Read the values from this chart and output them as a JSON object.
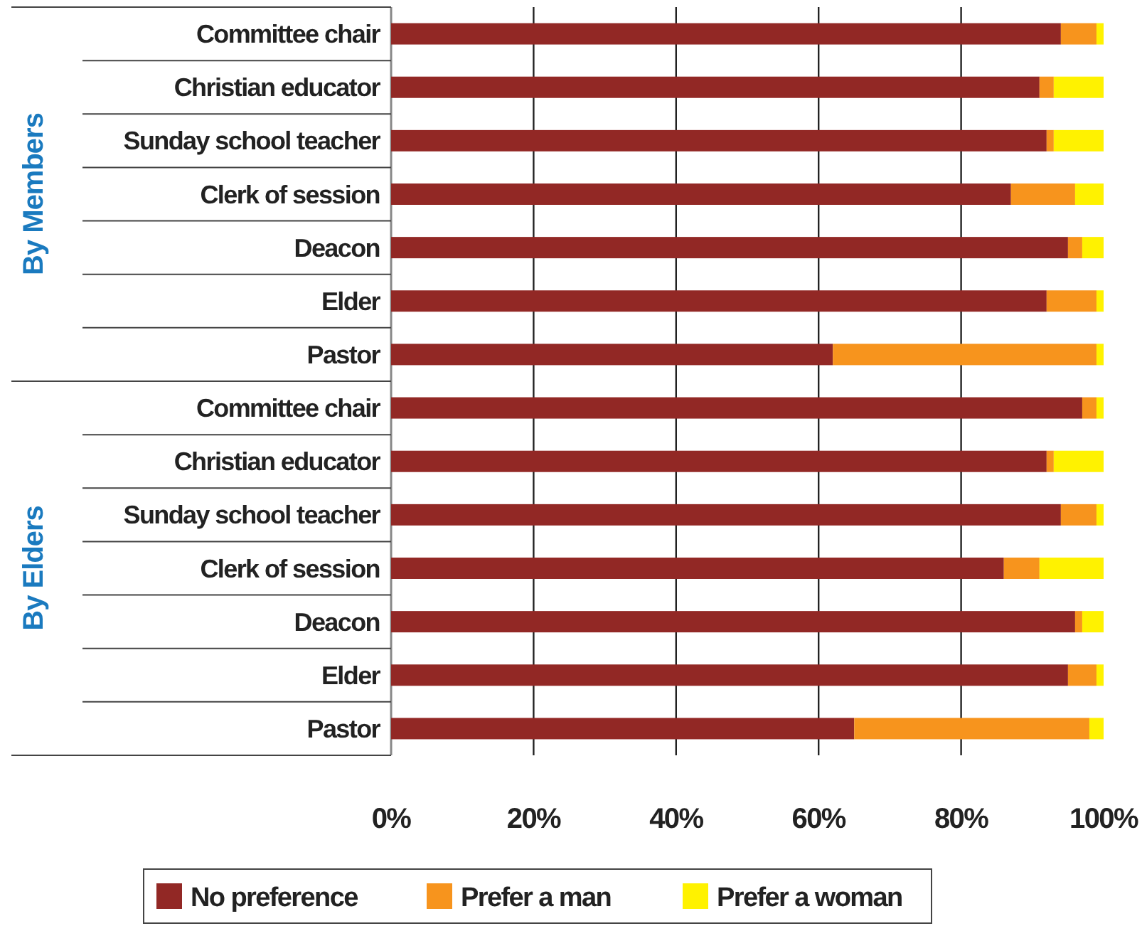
{
  "chart_data": {
    "type": "bar",
    "orientation": "horizontal",
    "stacked": true,
    "categories": [
      "Committee chair",
      "Christian educator",
      "Sunday school teacher",
      "Clerk of session",
      "Deacon",
      "Elder",
      "Pastor",
      "Committee chair",
      "Christian educator",
      "Sunday school teacher",
      "Clerk of session",
      "Deacon",
      "Elder",
      "Pastor"
    ],
    "series": [
      {
        "name": "No preference",
        "color": "#922825",
        "values": [
          94,
          91,
          92,
          87,
          95,
          92,
          62,
          97,
          92,
          94,
          86,
          96,
          95,
          65
        ]
      },
      {
        "name": "Prefer a man",
        "color": "#f7941d",
        "values": [
          5,
          2,
          1,
          9,
          2,
          7,
          37,
          2,
          1,
          5,
          5,
          1,
          4,
          33
        ]
      },
      {
        "name": "Prefer a woman",
        "color": "#fff200",
        "values": [
          1,
          7,
          7,
          4,
          3,
          1,
          1,
          1,
          7,
          1,
          9,
          3,
          1,
          2
        ]
      }
    ],
    "xlim": [
      0,
      100
    ],
    "xticks": [
      {
        "value": 0,
        "label": "0%"
      },
      {
        "value": 20,
        "label": "20%"
      },
      {
        "value": 40,
        "label": "40%"
      },
      {
        "value": 60,
        "label": "60%"
      },
      {
        "value": 80,
        "label": "80%"
      },
      {
        "value": 100,
        "label": "100%"
      }
    ],
    "grid": "x",
    "legend": "bottom",
    "annotations": [
      "By Members",
      "By Elders"
    ]
  }
}
